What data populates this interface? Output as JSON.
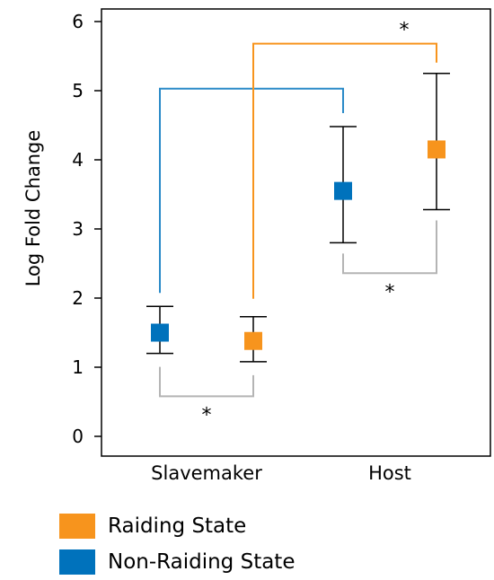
{
  "chart_data": {
    "type": "scatter",
    "title": "",
    "xlabel": "",
    "ylabel": "Log Fold Change",
    "ylim": [
      -0.3,
      6.25
    ],
    "yticks": [
      "0",
      "1",
      "2",
      "3",
      "4",
      "5",
      "6"
    ],
    "categories": [
      "Slavemaker",
      "Host"
    ],
    "grid": false,
    "legend_placement": "bottom-left",
    "series": [
      {
        "name": "Raiding State",
        "color": "#f7941d",
        "points": [
          {
            "category": "Slavemaker",
            "value": 1.38,
            "err_low": 1.08,
            "err_high": 1.73
          },
          {
            "category": "Host",
            "value": 4.15,
            "err_low": 3.28,
            "err_high": 5.25
          }
        ]
      },
      {
        "name": "Non-Raiding State",
        "color": "#0072bc",
        "points": [
          {
            "category": "Slavemaker",
            "value": 1.5,
            "err_low": 1.2,
            "err_high": 1.88
          },
          {
            "category": "Host",
            "value": 3.55,
            "err_low": 2.8,
            "err_high": 4.48
          }
        ]
      }
    ],
    "significance": [
      {
        "label": "*",
        "between": "Slavemaker Non-Raiding State vs Host Non-Raiding State",
        "color": "#2a8ac8"
      },
      {
        "label": "*",
        "between": "Slavemaker Raiding State vs Host Raiding State",
        "color": "#f7941d"
      },
      {
        "label": "*",
        "between": "Slavemaker Non-Raiding State vs Slavemaker Raiding State",
        "color": "#b4b4b4"
      },
      {
        "label": "*",
        "between": "Host Non-Raiding State vs Host Raiding State",
        "color": "#b4b4b4"
      }
    ]
  }
}
